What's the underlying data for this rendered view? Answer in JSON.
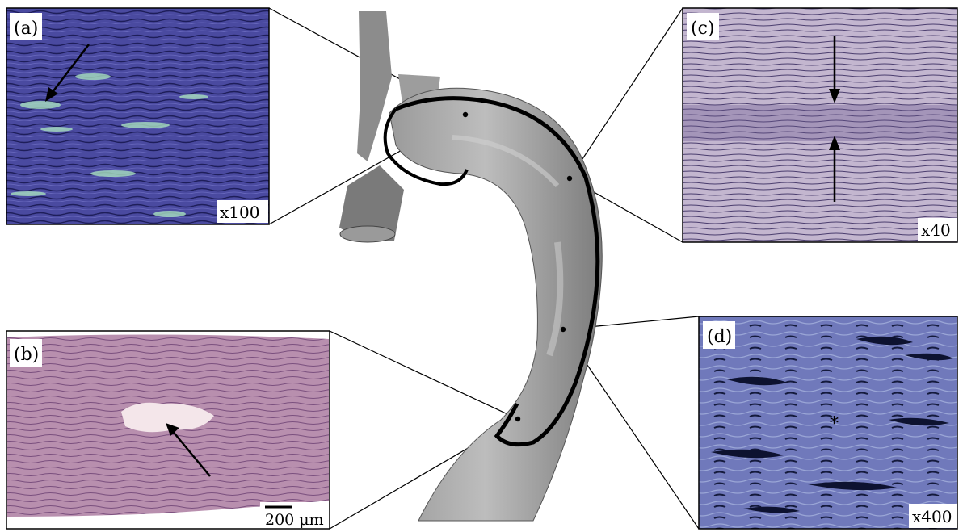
{
  "panels": {
    "a": {
      "label": "(a)",
      "magnification": "x100",
      "fill": "#4a4aa0"
    },
    "b": {
      "label": "(b)",
      "scale_bar": "200 μm",
      "fill": "#b88fae"
    },
    "c": {
      "label": "(c)",
      "magnification": "x40",
      "fill": "#b7a9c6"
    },
    "d": {
      "label": "(d)",
      "magnification": "x400",
      "marker": "*",
      "fill": "#6f78b8"
    }
  },
  "colors": {
    "aorta": "#8a8a8a",
    "aorta_light": "#b5b5b5",
    "border": "#000000"
  }
}
